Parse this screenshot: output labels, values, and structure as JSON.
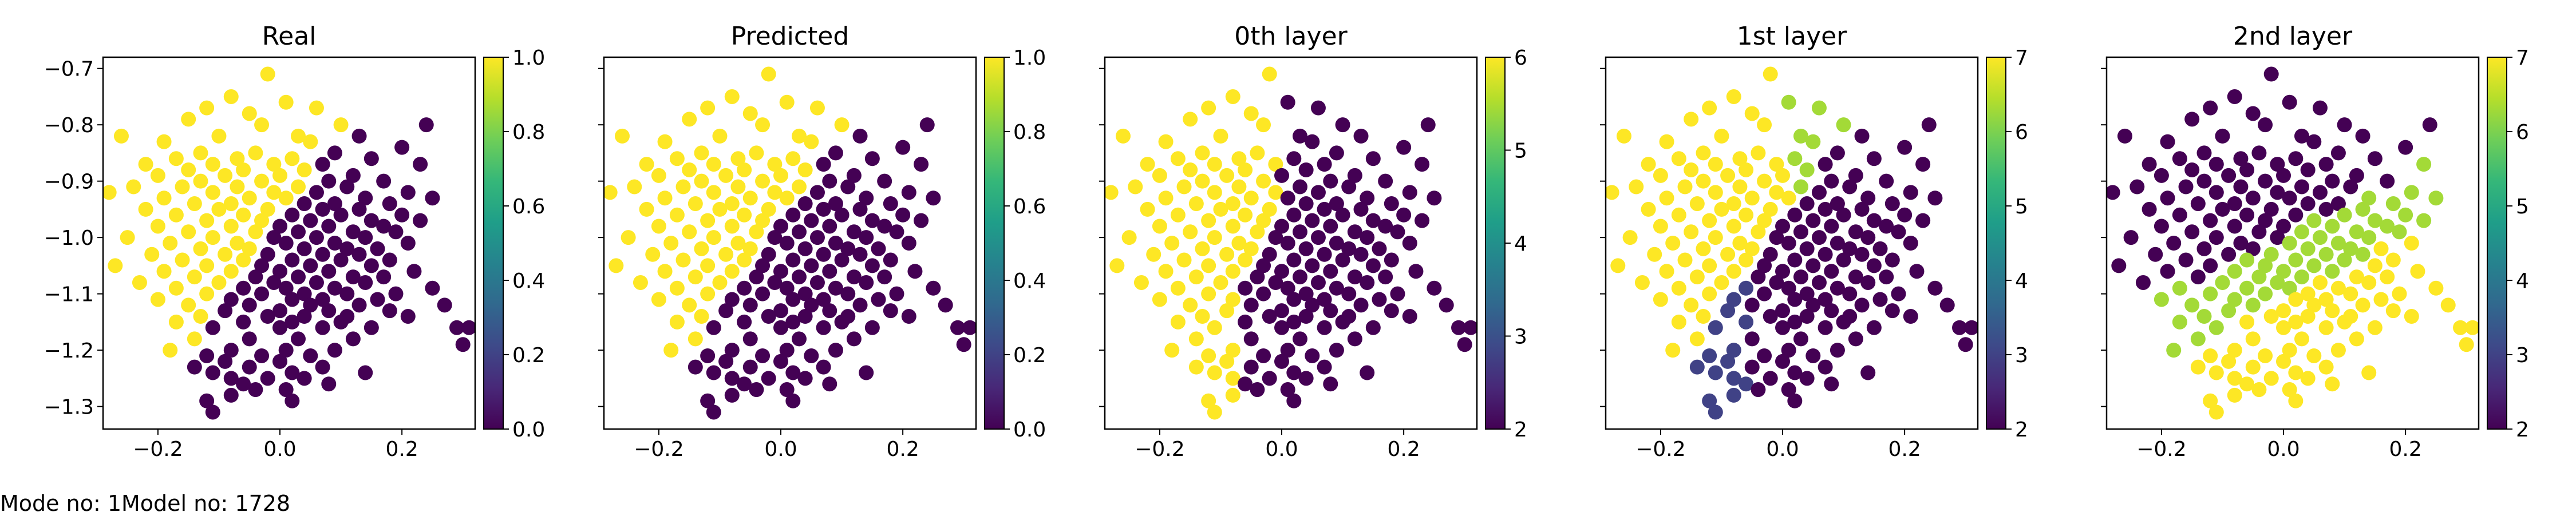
{
  "footer": {
    "mode_text": "Mode no: 1",
    "model_text": "Model no: 1728"
  },
  "colormap": [
    "#440154",
    "#482878",
    "#3e4989",
    "#31688e",
    "#26828e",
    "#1f9e89",
    "#35b779",
    "#6ece58",
    "#b5de2b",
    "#fde725"
  ],
  "chart_data": [
    {
      "type": "scatter",
      "title": "Real",
      "xlim": [
        -0.29,
        0.32
      ],
      "ylim": [
        -1.34,
        -0.68
      ],
      "xticks": [
        -0.2,
        0.0,
        0.2
      ],
      "xtick_labels": [
        "−0.2",
        "0.0",
        "0.2"
      ],
      "yticks": [
        -0.7,
        -0.8,
        -0.9,
        -1.0,
        -1.1,
        -1.2,
        -1.3
      ],
      "ytick_labels": [
        "−0.7",
        "−0.8",
        "−0.9",
        "−1.0",
        "−1.1",
        "−1.2",
        "−1.3"
      ],
      "colorbar": {
        "range": [
          0.0,
          1.0
        ],
        "ticks": [
          0.0,
          0.2,
          0.4,
          0.6,
          0.8,
          1.0
        ],
        "tick_labels": [
          "0.0",
          "0.2",
          "0.4",
          "0.6",
          "0.8",
          "1.0"
        ]
      },
      "rule": "binary",
      "grid": false,
      "legend": "none"
    },
    {
      "type": "scatter",
      "title": "Predicted",
      "xlim": [
        -0.29,
        0.32
      ],
      "ylim": [
        -1.34,
        -0.68
      ],
      "xticks": [
        -0.2,
        0.0,
        0.2
      ],
      "xtick_labels": [
        "−0.2",
        "0.0",
        "0.2"
      ],
      "yticks": [
        -0.7,
        -0.8,
        -0.9,
        -1.0,
        -1.1,
        -1.2,
        -1.3
      ],
      "ytick_labels": [],
      "colorbar": {
        "range": [
          0.0,
          1.0
        ],
        "ticks": [
          0.0,
          0.2,
          0.4,
          0.6,
          0.8,
          1.0
        ],
        "tick_labels": [
          "0.0",
          "0.2",
          "0.4",
          "0.6",
          "0.8",
          "1.0"
        ]
      },
      "rule": "binary",
      "grid": false,
      "legend": "none"
    },
    {
      "type": "scatter",
      "title": "0th layer",
      "xlim": [
        -0.29,
        0.32
      ],
      "ylim": [
        -1.34,
        -0.68
      ],
      "xticks": [
        -0.2,
        0.0,
        0.2
      ],
      "xtick_labels": [
        "−0.2",
        "0.0",
        "0.2"
      ],
      "yticks": [
        -0.7,
        -0.8,
        -0.9,
        -1.0,
        -1.1,
        -1.2,
        -1.3
      ],
      "ytick_labels": [],
      "colorbar": {
        "range": [
          2,
          6
        ],
        "ticks": [
          2,
          3,
          4,
          5,
          6
        ],
        "tick_labels": [
          "2",
          "3",
          "4",
          "5",
          "6"
        ]
      },
      "rule": "layer0",
      "grid": false,
      "legend": "none"
    },
    {
      "type": "scatter",
      "title": "1st layer",
      "xlim": [
        -0.29,
        0.32
      ],
      "ylim": [
        -1.34,
        -0.68
      ],
      "xticks": [
        -0.2,
        0.0,
        0.2
      ],
      "xtick_labels": [
        "−0.2",
        "0.0",
        "0.2"
      ],
      "yticks": [
        -0.7,
        -0.8,
        -0.9,
        -1.0,
        -1.1,
        -1.2,
        -1.3
      ],
      "ytick_labels": [],
      "colorbar": {
        "range": [
          2,
          7
        ],
        "ticks": [
          2,
          3,
          4,
          5,
          6,
          7
        ],
        "tick_labels": [
          "2",
          "3",
          "4",
          "5",
          "6",
          "7"
        ]
      },
      "rule": "layer1",
      "grid": false,
      "legend": "none"
    },
    {
      "type": "scatter",
      "title": "2nd layer",
      "xlim": [
        -0.29,
        0.32
      ],
      "ylim": [
        -1.34,
        -0.68
      ],
      "xticks": [
        -0.2,
        0.0,
        0.2
      ],
      "xtick_labels": [
        "−0.2",
        "0.0",
        "0.2"
      ],
      "yticks": [
        -0.7,
        -0.8,
        -0.9,
        -1.0,
        -1.1,
        -1.2,
        -1.3
      ],
      "ytick_labels": [],
      "colorbar": {
        "range": [
          2,
          7
        ],
        "ticks": [
          2,
          3,
          4,
          5,
          6,
          7
        ],
        "tick_labels": [
          "2",
          "3",
          "4",
          "5",
          "6",
          "7"
        ]
      },
      "rule": "layer2",
      "grid": false,
      "legend": "none"
    }
  ],
  "points": [
    [
      -0.02,
      -0.71
    ],
    [
      -0.08,
      -0.75
    ],
    [
      0.01,
      -0.76
    ],
    [
      -0.12,
      -0.77
    ],
    [
      0.06,
      -0.77
    ],
    [
      -0.05,
      -0.78
    ],
    [
      -0.15,
      -0.79
    ],
    [
      0.1,
      -0.8
    ],
    [
      -0.03,
      -0.8
    ],
    [
      0.24,
      -0.8
    ],
    [
      -0.26,
      -0.82
    ],
    [
      -0.1,
      -0.82
    ],
    [
      0.03,
      -0.82
    ],
    [
      0.13,
      -0.82
    ],
    [
      -0.19,
      -0.83
    ],
    [
      0.05,
      -0.83
    ],
    [
      0.2,
      -0.84
    ],
    [
      -0.13,
      -0.85
    ],
    [
      -0.04,
      -0.85
    ],
    [
      0.09,
      -0.85
    ],
    [
      -0.17,
      -0.86
    ],
    [
      -0.07,
      -0.86
    ],
    [
      0.02,
      -0.86
    ],
    [
      0.15,
      -0.86
    ],
    [
      -0.22,
      -0.87
    ],
    [
      -0.11,
      -0.87
    ],
    [
      -0.01,
      -0.87
    ],
    [
      0.07,
      -0.87
    ],
    [
      0.23,
      -0.87
    ],
    [
      -0.15,
      -0.88
    ],
    [
      -0.06,
      -0.88
    ],
    [
      0.04,
      -0.88
    ],
    [
      0.12,
      -0.89
    ],
    [
      -0.2,
      -0.89
    ],
    [
      -0.09,
      -0.89
    ],
    [
      0.0,
      -0.89
    ],
    [
      -0.13,
      -0.9
    ],
    [
      -0.03,
      -0.9
    ],
    [
      0.08,
      -0.9
    ],
    [
      0.17,
      -0.9
    ],
    [
      -0.24,
      -0.91
    ],
    [
      -0.16,
      -0.91
    ],
    [
      -0.07,
      -0.91
    ],
    [
      0.03,
      -0.91
    ],
    [
      0.11,
      -0.91
    ],
    [
      -0.28,
      -0.92
    ],
    [
      -0.11,
      -0.92
    ],
    [
      -0.01,
      -0.92
    ],
    [
      0.06,
      -0.92
    ],
    [
      0.21,
      -0.92
    ],
    [
      -0.19,
      -0.93
    ],
    [
      -0.05,
      -0.93
    ],
    [
      0.01,
      -0.93
    ],
    [
      0.14,
      -0.93
    ],
    [
      0.25,
      -0.93
    ],
    [
      -0.14,
      -0.94
    ],
    [
      -0.08,
      -0.94
    ],
    [
      0.04,
      -0.94
    ],
    [
      0.09,
      -0.94
    ],
    [
      0.18,
      -0.94
    ],
    [
      -0.22,
      -0.95
    ],
    [
      -0.1,
      -0.95
    ],
    [
      -0.02,
      -0.95
    ],
    [
      0.07,
      -0.95
    ],
    [
      0.13,
      -0.95
    ],
    [
      -0.17,
      -0.96
    ],
    [
      -0.06,
      -0.96
    ],
    [
      0.02,
      -0.96
    ],
    [
      0.1,
      -0.96
    ],
    [
      0.2,
      -0.96
    ],
    [
      -0.12,
      -0.97
    ],
    [
      -0.03,
      -0.97
    ],
    [
      0.05,
      -0.97
    ],
    [
      0.15,
      -0.97
    ],
    [
      0.23,
      -0.97
    ],
    [
      -0.2,
      -0.98
    ],
    [
      -0.08,
      -0.98
    ],
    [
      0.0,
      -0.98
    ],
    [
      0.08,
      -0.98
    ],
    [
      0.17,
      -0.98
    ],
    [
      -0.15,
      -0.99
    ],
    [
      -0.04,
      -0.99
    ],
    [
      0.03,
      -0.99
    ],
    [
      0.12,
      -0.99
    ],
    [
      0.19,
      -0.99
    ],
    [
      -0.25,
      -1.0
    ],
    [
      -0.11,
      -1.0
    ],
    [
      -0.01,
      -1.0
    ],
    [
      0.06,
      -1.0
    ],
    [
      0.14,
      -1.0
    ],
    [
      -0.18,
      -1.01
    ],
    [
      -0.07,
      -1.01
    ],
    [
      0.01,
      -1.01
    ],
    [
      0.09,
      -1.01
    ],
    [
      0.21,
      -1.01
    ],
    [
      -0.13,
      -1.02
    ],
    [
      -0.05,
      -1.02
    ],
    [
      0.04,
      -1.02
    ],
    [
      0.11,
      -1.02
    ],
    [
      0.16,
      -1.02
    ],
    [
      -0.21,
      -1.03
    ],
    [
      -0.09,
      -1.03
    ],
    [
      -0.02,
      -1.03
    ],
    [
      0.07,
      -1.03
    ],
    [
      0.13,
      -1.03
    ],
    [
      -0.16,
      -1.04
    ],
    [
      -0.06,
      -1.04
    ],
    [
      0.02,
      -1.04
    ],
    [
      0.1,
      -1.04
    ],
    [
      0.18,
      -1.04
    ],
    [
      -0.27,
      -1.05
    ],
    [
      -0.12,
      -1.05
    ],
    [
      -0.03,
      -1.05
    ],
    [
      0.05,
      -1.05
    ],
    [
      0.15,
      -1.05
    ],
    [
      -0.19,
      -1.06
    ],
    [
      -0.08,
      -1.06
    ],
    [
      0.0,
      -1.06
    ],
    [
      0.08,
      -1.06
    ],
    [
      0.22,
      -1.06
    ],
    [
      -0.14,
      -1.07
    ],
    [
      -0.04,
      -1.07
    ],
    [
      0.03,
      -1.07
    ],
    [
      0.12,
      -1.07
    ],
    [
      0.17,
      -1.07
    ],
    [
      -0.23,
      -1.08
    ],
    [
      -0.1,
      -1.08
    ],
    [
      -0.01,
      -1.08
    ],
    [
      0.06,
      -1.08
    ],
    [
      0.14,
      -1.08
    ],
    [
      -0.17,
      -1.09
    ],
    [
      -0.06,
      -1.09
    ],
    [
      0.01,
      -1.09
    ],
    [
      0.09,
      -1.09
    ],
    [
      0.25,
      -1.09
    ],
    [
      -0.12,
      -1.1
    ],
    [
      -0.03,
      -1.1
    ],
    [
      0.04,
      -1.1
    ],
    [
      0.11,
      -1.1
    ],
    [
      0.19,
      -1.1
    ],
    [
      -0.2,
      -1.11
    ],
    [
      -0.08,
      -1.11
    ],
    [
      0.02,
      -1.11
    ],
    [
      0.07,
      -1.11
    ],
    [
      0.16,
      -1.11
    ],
    [
      -0.15,
      -1.12
    ],
    [
      -0.05,
      -1.12
    ],
    [
      0.05,
      -1.12
    ],
    [
      0.13,
      -1.12
    ],
    [
      0.27,
      -1.12
    ],
    [
      -0.09,
      -1.13
    ],
    [
      0.0,
      -1.13
    ],
    [
      0.08,
      -1.13
    ],
    [
      0.18,
      -1.13
    ],
    [
      -0.13,
      -1.14
    ],
    [
      -0.02,
      -1.14
    ],
    [
      0.04,
      -1.14
    ],
    [
      0.11,
      -1.14
    ],
    [
      0.21,
      -1.14
    ],
    [
      -0.17,
      -1.15
    ],
    [
      -0.06,
      -1.15
    ],
    [
      0.02,
      -1.15
    ],
    [
      0.1,
      -1.15
    ],
    [
      0.29,
      -1.16
    ],
    [
      -0.11,
      -1.16
    ],
    [
      0.0,
      -1.16
    ],
    [
      0.07,
      -1.16
    ],
    [
      0.15,
      -1.16
    ],
    [
      0.31,
      -1.16
    ],
    [
      -0.14,
      -1.18
    ],
    [
      -0.05,
      -1.18
    ],
    [
      0.03,
      -1.18
    ],
    [
      0.12,
      -1.18
    ],
    [
      0.3,
      -1.19
    ],
    [
      -0.18,
      -1.2
    ],
    [
      -0.08,
      -1.2
    ],
    [
      0.01,
      -1.2
    ],
    [
      0.09,
      -1.2
    ],
    [
      -0.12,
      -1.21
    ],
    [
      -0.03,
      -1.21
    ],
    [
      0.05,
      -1.21
    ],
    [
      -0.09,
      -1.22
    ],
    [
      0.0,
      -1.22
    ],
    [
      -0.05,
      -1.23
    ],
    [
      0.07,
      -1.23
    ],
    [
      -0.11,
      -1.24
    ],
    [
      0.02,
      -1.24
    ],
    [
      0.14,
      -1.24
    ],
    [
      -0.08,
      -1.25
    ],
    [
      -0.02,
      -1.25
    ],
    [
      0.04,
      -1.25
    ],
    [
      -0.06,
      -1.26
    ],
    [
      0.01,
      -1.27
    ],
    [
      -0.12,
      -1.29
    ],
    [
      0.02,
      -1.29
    ],
    [
      -0.08,
      -1.28
    ],
    [
      -0.11,
      -1.31
    ],
    [
      -0.04,
      -1.27
    ],
    [
      0.08,
      -1.26
    ],
    [
      -0.14,
      -1.23
    ]
  ]
}
